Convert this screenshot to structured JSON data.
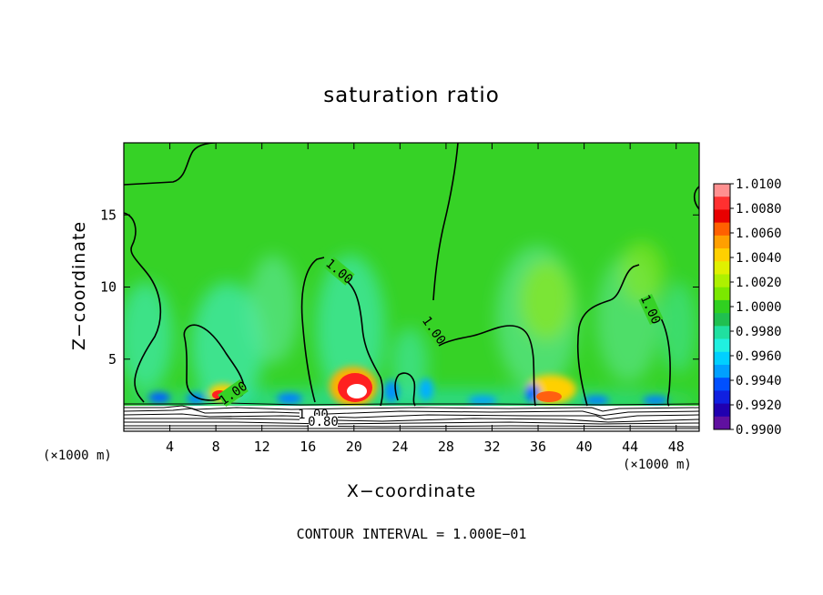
{
  "chart_data": {
    "type": "heatmap",
    "title": "saturation ratio",
    "xlabel": "X−coordinate",
    "ylabel": "Z−coordinate",
    "x_unit_left": "(×1000 m)",
    "x_unit_right": "(×1000 m)",
    "xlim": [
      0,
      50
    ],
    "ylim": [
      0,
      20
    ],
    "x_ticks": [
      4,
      8,
      12,
      16,
      20,
      24,
      28,
      32,
      36,
      40,
      44,
      48
    ],
    "x_tick_labels": [
      "4",
      "8",
      "12",
      "16",
      "20",
      "24",
      "28",
      "32",
      "36",
      "40",
      "44",
      "48"
    ],
    "y_ticks": [
      5,
      10,
      15
    ],
    "y_tick_labels": [
      "5",
      "10",
      "15"
    ],
    "contour_interval_text": "CONTOUR INTERVAL = 1.000E−01",
    "contour_labels": [
      "1.00",
      "1.00",
      "1.00",
      "1.00",
      "1.00",
      "0.80"
    ],
    "colorbar": {
      "labels": [
        "1.0100",
        "1.0080",
        "1.0060",
        "1.0040",
        "1.0020",
        "1.0000",
        "0.9980",
        "0.9960",
        "0.9940",
        "0.9920",
        "0.9900"
      ],
      "colors": [
        "#ff9090",
        "#ff3030",
        "#e80000",
        "#ff6000",
        "#ff9f00",
        "#ffd000",
        "#e0f000",
        "#aef000",
        "#7be800",
        "#30d020",
        "#20c050",
        "#20e0a0",
        "#20f0e0",
        "#00d0ff",
        "#00a0ff",
        "#0050ff",
        "#1020e0",
        "#2000b0",
        "#6010a0"
      ]
    }
  }
}
